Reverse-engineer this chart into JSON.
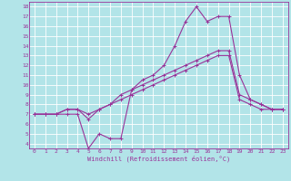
{
  "xlabel": "Windchill (Refroidissement éolien,°C)",
  "bg_color": "#b2e4e8",
  "grid_color": "#ffffff",
  "line_color": "#993399",
  "xlim": [
    -0.5,
    23.5
  ],
  "ylim": [
    3.5,
    18.5
  ],
  "xticks": [
    0,
    1,
    2,
    3,
    4,
    5,
    6,
    7,
    8,
    9,
    10,
    11,
    12,
    13,
    14,
    15,
    16,
    17,
    18,
    19,
    20,
    21,
    22,
    23
  ],
  "yticks": [
    4,
    5,
    6,
    7,
    8,
    9,
    10,
    11,
    12,
    13,
    14,
    15,
    16,
    17,
    18
  ],
  "line1_x": [
    0,
    1,
    2,
    3,
    4,
    5,
    6,
    7,
    8,
    9,
    10,
    11,
    12,
    13,
    14,
    15,
    16,
    17,
    18,
    19,
    20,
    21,
    22,
    23
  ],
  "line1_y": [
    7.0,
    7.0,
    7.0,
    7.0,
    7.0,
    3.5,
    5.0,
    4.5,
    4.5,
    9.5,
    10.5,
    11.0,
    12.0,
    14.0,
    16.5,
    18.0,
    16.5,
    17.0,
    17.0,
    11.0,
    8.5,
    8.0,
    7.5,
    7.5
  ],
  "line2_x": [
    0,
    1,
    2,
    3,
    4,
    5,
    6,
    7,
    8,
    9,
    10,
    11,
    12,
    13,
    14,
    15,
    16,
    17,
    18,
    19,
    20,
    21,
    22,
    23
  ],
  "line2_y": [
    7.0,
    7.0,
    7.0,
    7.5,
    7.5,
    6.5,
    7.5,
    8.0,
    9.0,
    9.5,
    10.0,
    10.5,
    11.0,
    11.5,
    12.0,
    12.5,
    13.0,
    13.5,
    13.5,
    9.0,
    8.5,
    8.0,
    7.5,
    7.5
  ],
  "line3_x": [
    0,
    1,
    2,
    3,
    4,
    5,
    6,
    7,
    8,
    9,
    10,
    11,
    12,
    13,
    14,
    15,
    16,
    17,
    18,
    19,
    20,
    21,
    22,
    23
  ],
  "line3_y": [
    7.0,
    7.0,
    7.0,
    7.5,
    7.5,
    7.0,
    7.5,
    8.0,
    8.5,
    9.0,
    9.5,
    10.0,
    10.5,
    11.0,
    11.5,
    12.0,
    12.5,
    13.0,
    13.0,
    8.5,
    8.0,
    7.5,
    7.5,
    7.5
  ],
  "xlabel_fontsize": 5.0,
  "tick_fontsize": 4.5,
  "lw": 0.8,
  "ms": 2.5
}
